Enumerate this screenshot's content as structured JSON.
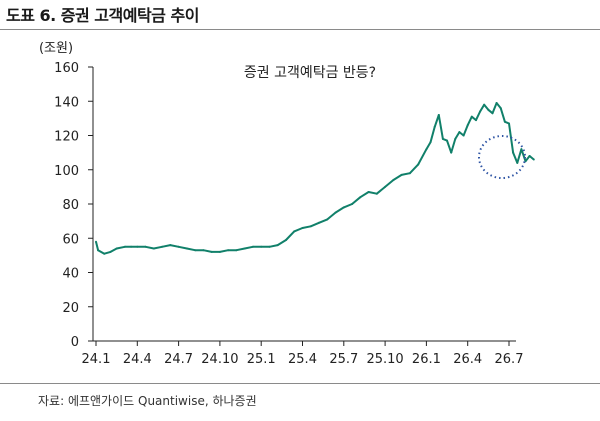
{
  "figure": {
    "title": "도표 6. 증권 고객예탁금 추이",
    "source": "자료: 에프앤가이드 Quantiwise, 하나증권"
  },
  "chart_data": {
    "type": "line",
    "unit_label": "(조원)",
    "annotation": "증권 고객예탁금 반등?",
    "ylim": [
      0,
      160
    ],
    "y_ticks": [
      "0",
      "20",
      "40",
      "60",
      "80",
      "100",
      "120",
      "140",
      "160"
    ],
    "x_ticks": [
      "24.1",
      "24.4",
      "24.7",
      "24.10",
      "25.1",
      "25.4",
      "25.7",
      "25.10",
      "26.1",
      "26.4",
      "26.7"
    ],
    "grid": false,
    "line_color": "#11806a",
    "highlight_color": "#2f55a4",
    "series": [
      {
        "x": [
          0.0,
          0.05,
          0.2,
          0.35,
          0.5,
          0.7,
          0.85,
          1.0,
          1.2,
          1.4,
          1.6,
          1.8,
          2.0,
          2.2,
          2.4,
          2.6,
          2.8,
          3.0,
          3.2,
          3.4,
          3.6,
          3.8,
          4.0,
          4.2,
          4.4,
          4.6,
          4.8,
          5.0,
          5.2,
          5.4,
          5.6,
          5.8,
          6.0,
          6.2,
          6.4,
          6.6,
          6.8,
          7.0,
          7.2,
          7.4,
          7.6,
          7.8,
          8.0,
          8.1,
          8.2,
          8.3,
          8.4,
          8.5,
          8.6,
          8.7,
          8.8,
          8.9,
          9.0,
          9.1,
          9.2,
          9.3,
          9.4,
          9.5,
          9.6,
          9.7,
          9.8,
          9.9,
          10.0,
          10.1,
          10.2,
          10.3,
          10.4,
          10.5,
          10.6
        ],
        "values": [
          58,
          53,
          51,
          52,
          54,
          55,
          55,
          55,
          55,
          54,
          55,
          56,
          55,
          54,
          53,
          53,
          52,
          52,
          53,
          53,
          54,
          55,
          55,
          55,
          56,
          59,
          64,
          66,
          67,
          69,
          71,
          75,
          78,
          80,
          84,
          87,
          86,
          90,
          94,
          97,
          98,
          103,
          112,
          116,
          125,
          132,
          118,
          117,
          110,
          118,
          122,
          120,
          126,
          131,
          129,
          134,
          138,
          135,
          133,
          139,
          136,
          128,
          127,
          110,
          104,
          112,
          105,
          108,
          106
        ]
      }
    ]
  }
}
